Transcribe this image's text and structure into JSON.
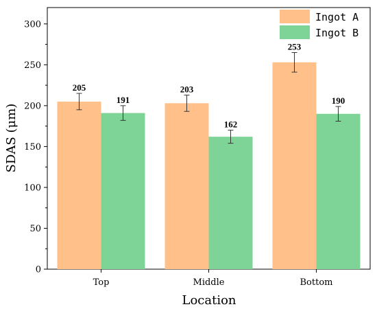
{
  "chart_data": {
    "type": "bar",
    "categories": [
      "Top",
      "Middle",
      "Bottom"
    ],
    "series": [
      {
        "name": "Ingot A",
        "values": [
          205,
          203,
          253
        ],
        "errors": [
          10,
          10,
          12
        ],
        "color": "#FFC08A"
      },
      {
        "name": "Ingot B",
        "values": [
          191,
          162,
          190
        ],
        "errors": [
          9,
          8,
          9
        ],
        "color": "#7ED497"
      }
    ],
    "xlabel": "Location",
    "ylabel": "SDAS (μm)",
    "ylim": [
      0,
      320
    ],
    "yticks": [
      0,
      50,
      100,
      150,
      200,
      250,
      300
    ],
    "ytick_labels": [
      "0",
      "50",
      "100",
      "150",
      "200",
      "250",
      "300"
    ],
    "grid": false,
    "legend_position": "top-right"
  }
}
